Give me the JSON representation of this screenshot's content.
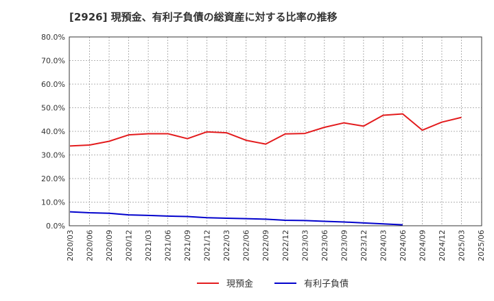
{
  "chart_data": {
    "type": "line",
    "title": "[2926]  現預金、有利子負債の総資産に対する比率の推移",
    "xlabel": "",
    "ylabel": "",
    "ylim": [
      0,
      80
    ],
    "y_ticks": [
      "0.0%",
      "10.0%",
      "20.0%",
      "30.0%",
      "40.0%",
      "50.0%",
      "60.0%",
      "70.0%",
      "80.0%"
    ],
    "x": [
      "2020/03",
      "2020/06",
      "2020/09",
      "2020/12",
      "2021/03",
      "2021/06",
      "2021/09",
      "2021/12",
      "2022/03",
      "2022/06",
      "2022/09",
      "2022/12",
      "2023/03",
      "2023/06",
      "2023/09",
      "2023/12",
      "2024/03",
      "2024/06",
      "2024/09",
      "2024/12",
      "2025/03",
      "2025/06"
    ],
    "grid": true,
    "legend_position": "bottom",
    "series": [
      {
        "name": "現預金",
        "color": "#e31a1c",
        "values": [
          33.8,
          34.2,
          35.8,
          38.5,
          39.0,
          39.0,
          36.9,
          39.8,
          39.4,
          36.2,
          34.6,
          38.9,
          39.1,
          41.7,
          43.6,
          42.2,
          46.8,
          47.4,
          40.5,
          43.9,
          45.9,
          null
        ]
      },
      {
        "name": "有利子負債",
        "color": "#0000cc",
        "values": [
          5.9,
          5.5,
          5.3,
          4.6,
          4.4,
          4.1,
          3.9,
          3.4,
          3.2,
          3.0,
          2.8,
          2.3,
          2.2,
          1.9,
          1.6,
          1.2,
          0.8,
          0.4,
          null,
          null,
          null,
          null
        ]
      }
    ]
  }
}
